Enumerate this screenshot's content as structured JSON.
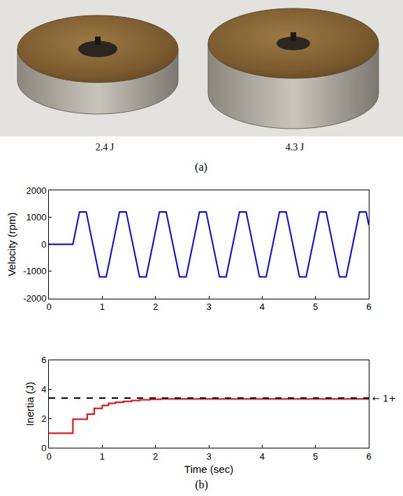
{
  "figure_a": {
    "labels": [
      "2.4 J",
      "4.3 J"
    ],
    "caption": "(a)"
  },
  "caption_b": "(b)",
  "chart_data": [
    {
      "type": "line",
      "y_label": "Velocity (rpm)",
      "xlim": [
        0,
        6
      ],
      "xticks": [
        0,
        1,
        2,
        3,
        4,
        5,
        6
      ],
      "ylim": [
        -2000,
        2000
      ],
      "yticks": [
        -2000,
        -1000,
        0,
        1000,
        2000
      ],
      "grid": false,
      "series": [
        {
          "color": "#0000ff",
          "line_style": "solid",
          "x": [
            0,
            0.45,
            0.575,
            0.7,
            0.95,
            1.075,
            1.325,
            1.45,
            1.7,
            1.825,
            2.075,
            2.2,
            2.45,
            2.575,
            2.825,
            2.95,
            3.2,
            3.325,
            3.575,
            3.7,
            3.95,
            4.075,
            4.325,
            4.45,
            4.7,
            4.825,
            5.075,
            5.2,
            5.45,
            5.575,
            5.825,
            5.95,
            6
          ],
          "values": [
            0,
            0,
            1200,
            1200,
            -1200,
            -1200,
            1200,
            1200,
            -1200,
            -1200,
            1200,
            1200,
            -1200,
            -1200,
            1200,
            1200,
            -1200,
            -1200,
            1200,
            1200,
            -1200,
            -1200,
            1200,
            1200,
            -1200,
            -1200,
            1200,
            1200,
            -1200,
            -1200,
            1200,
            1200,
            720
          ]
        }
      ]
    },
    {
      "type": "line",
      "x_label": "Time (sec)",
      "y_label": "Inertia (J)",
      "xlim": [
        0,
        6
      ],
      "xticks": [
        0,
        1,
        2,
        3,
        4,
        5,
        6
      ],
      "ylim": [
        0,
        6
      ],
      "yticks": [
        0,
        2,
        4,
        6
      ],
      "grid": false,
      "series": [
        {
          "color": "#ff0000",
          "type": "step",
          "line_style": "solid",
          "x": [
            0,
            0.45,
            0.72,
            0.85,
            1.0,
            1.12,
            1.25,
            1.4,
            1.55,
            1.7,
            1.9,
            2.1,
            6
          ],
          "values": [
            1,
            1.95,
            2.3,
            2.7,
            2.9,
            3.05,
            3.12,
            3.18,
            3.24,
            3.28,
            3.32,
            3.35,
            3.35
          ]
        },
        {
          "color": "#000000",
          "line_style": "dash",
          "x": [
            0,
            6
          ],
          "values": [
            3.4,
            3.4
          ]
        }
      ],
      "annotations": [
        {
          "text": "← 1+",
          "x": 6,
          "y": 3.4
        }
      ]
    }
  ]
}
